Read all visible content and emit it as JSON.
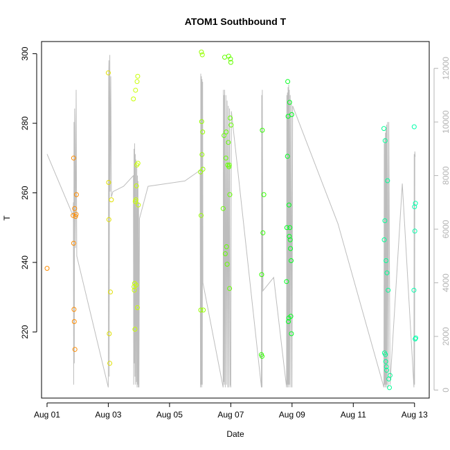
{
  "chart_data": {
    "type": "scatter",
    "title": "ATOM1 Southbound T",
    "xlabel": "Date",
    "ylabel": "T",
    "x_ticks": [
      "Aug 01",
      "Aug 03",
      "Aug 05",
      "Aug 07",
      "Aug 09",
      "Aug 11",
      "Aug 13"
    ],
    "x_tick_days": [
      1,
      3,
      5,
      7,
      9,
      11,
      13
    ],
    "xlim": [
      0.82,
      13.48
    ],
    "y_ticks": [
      220,
      240,
      260,
      280,
      300
    ],
    "ylim": [
      201,
      303.5
    ],
    "y2_ticks": [
      0,
      2000,
      4000,
      6000,
      8000,
      10000,
      12000
    ],
    "y2lim": [
      -300,
      13000
    ],
    "grid": false,
    "secondary_series": {
      "axis": "right",
      "color": "#bdbdbd",
      "points": [
        [
          1.0,
          8800
        ],
        [
          1.85,
          6500
        ],
        [
          1.86,
          7000
        ],
        [
          1.87,
          200
        ],
        [
          1.88,
          10000
        ],
        [
          1.89,
          1000
        ],
        [
          1.9,
          10500
        ],
        [
          1.91,
          9800
        ],
        [
          1.93,
          5300
        ],
        [
          1.95,
          11200
        ],
        [
          1.97,
          5000
        ],
        [
          3.0,
          100
        ],
        [
          3.01,
          11800
        ],
        [
          3.02,
          12300
        ],
        [
          3.03,
          500
        ],
        [
          3.04,
          9800
        ],
        [
          3.05,
          12500
        ],
        [
          3.06,
          7400
        ],
        [
          3.08,
          11700
        ],
        [
          3.1,
          7200
        ],
        [
          3.15,
          7400
        ],
        [
          3.5,
          7600
        ],
        [
          3.82,
          8000
        ],
        [
          3.83,
          200
        ],
        [
          3.84,
          9000
        ],
        [
          3.85,
          1000
        ],
        [
          3.86,
          9200
        ],
        [
          3.87,
          500
        ],
        [
          3.88,
          8800
        ],
        [
          3.89,
          200
        ],
        [
          3.9,
          8600
        ],
        [
          3.92,
          300
        ],
        [
          3.93,
          8400
        ],
        [
          3.94,
          100
        ],
        [
          3.95,
          8000
        ],
        [
          3.96,
          200
        ],
        [
          3.97,
          7800
        ],
        [
          3.98,
          100
        ],
        [
          3.99,
          7000
        ],
        [
          4.0,
          100
        ],
        [
          4.02,
          6400
        ],
        [
          4.3,
          7600
        ],
        [
          5.5,
          7800
        ],
        [
          6.0,
          8200
        ],
        [
          6.01,
          100
        ],
        [
          6.02,
          11800
        ],
        [
          6.03,
          200
        ],
        [
          6.04,
          11700
        ],
        [
          6.05,
          100
        ],
        [
          6.06,
          11600
        ],
        [
          6.07,
          200
        ],
        [
          6.08,
          11500
        ],
        [
          6.09,
          4000
        ],
        [
          6.75,
          100
        ],
        [
          6.76,
          11200
        ],
        [
          6.77,
          300
        ],
        [
          6.78,
          11000
        ],
        [
          6.79,
          200
        ],
        [
          6.8,
          11200
        ],
        [
          6.82,
          100
        ],
        [
          6.84,
          11000
        ],
        [
          6.86,
          200
        ],
        [
          6.88,
          10800
        ],
        [
          6.9,
          100
        ],
        [
          6.92,
          10600
        ],
        [
          6.94,
          100
        ],
        [
          6.96,
          10500
        ],
        [
          6.98,
          200
        ],
        [
          7.0,
          100
        ],
        [
          7.02,
          10400
        ],
        [
          8.0,
          100
        ],
        [
          8.01,
          11000
        ],
        [
          8.02,
          100
        ],
        [
          8.03,
          11200
        ],
        [
          8.05,
          3700
        ],
        [
          8.4,
          4200
        ],
        [
          8.82,
          100
        ],
        [
          8.83,
          11000
        ],
        [
          8.84,
          200
        ],
        [
          8.85,
          11100
        ],
        [
          8.86,
          100
        ],
        [
          8.87,
          11300
        ],
        [
          8.88,
          200
        ],
        [
          8.89,
          11400
        ],
        [
          8.9,
          100
        ],
        [
          8.91,
          11200
        ],
        [
          8.92,
          200
        ],
        [
          8.94,
          11000
        ],
        [
          8.96,
          100
        ],
        [
          8.98,
          10800
        ],
        [
          9.0,
          100
        ],
        [
          9.02,
          10600
        ],
        [
          10.5,
          6200
        ],
        [
          12.0,
          100
        ],
        [
          12.01,
          9200
        ],
        [
          12.02,
          200
        ],
        [
          12.03,
          9400
        ],
        [
          12.04,
          100
        ],
        [
          12.05,
          9600
        ],
        [
          12.06,
          200
        ],
        [
          12.07,
          9800
        ],
        [
          12.08,
          100
        ],
        [
          12.09,
          9900
        ],
        [
          12.1,
          200
        ],
        [
          12.12,
          10000
        ],
        [
          12.14,
          100
        ],
        [
          12.16,
          10000
        ],
        [
          12.2,
          200
        ],
        [
          12.6,
          7700
        ],
        [
          12.98,
          100
        ],
        [
          12.99,
          8800
        ],
        [
          13.0,
          200
        ],
        [
          13.01,
          8900
        ],
        [
          13.02,
          8700
        ]
      ]
    },
    "series": [
      {
        "color": "#ff8c00",
        "points": [
          [
            1.0,
            238.3
          ],
          [
            1.85,
            253.5
          ],
          [
            1.87,
            245.5
          ],
          [
            1.87,
            270.0
          ],
          [
            1.88,
            226.5
          ],
          [
            1.89,
            223.0
          ],
          [
            1.9,
            255.5
          ],
          [
            1.91,
            215.0
          ],
          [
            1.93,
            253.2
          ],
          [
            1.95,
            253.8
          ],
          [
            1.96,
            259.5
          ]
        ]
      },
      {
        "color": "#e0e000",
        "points": [
          [
            3.0,
            294.5
          ],
          [
            3.01,
            263.0
          ],
          [
            3.02,
            252.3
          ],
          [
            3.03,
            219.5
          ],
          [
            3.05,
            211.0
          ],
          [
            3.07,
            231.5
          ],
          [
            3.1,
            258.0
          ]
        ]
      },
      {
        "color": "#c8ff00",
        "points": [
          [
            3.82,
            287.0
          ],
          [
            3.84,
            233.0
          ],
          [
            3.85,
            232.0
          ],
          [
            3.86,
            234.0
          ],
          [
            3.87,
            220.8
          ],
          [
            3.88,
            257.5
          ],
          [
            3.89,
            289.5
          ],
          [
            3.9,
            258.0
          ],
          [
            3.91,
            233.5
          ],
          [
            3.92,
            262.0
          ],
          [
            3.93,
            268.0
          ],
          [
            3.94,
            292.0
          ],
          [
            3.95,
            227.0
          ],
          [
            3.96,
            293.5
          ],
          [
            3.97,
            268.5
          ],
          [
            3.98,
            256.5
          ]
        ]
      },
      {
        "color": "#96ff00",
        "points": [
          [
            6.01,
            266.0
          ],
          [
            6.02,
            226.3
          ],
          [
            6.03,
            253.5
          ],
          [
            6.04,
            300.5
          ],
          [
            6.05,
            280.5
          ],
          [
            6.06,
            271.0
          ],
          [
            6.07,
            299.7
          ],
          [
            6.08,
            277.5
          ],
          [
            6.09,
            266.8
          ],
          [
            6.1,
            226.3
          ]
        ]
      },
      {
        "color": "#64ff00",
        "points": [
          [
            6.75,
            255.5
          ],
          [
            6.78,
            276.5
          ],
          [
            6.8,
            299.0
          ],
          [
            6.82,
            242.5
          ],
          [
            6.84,
            270.0
          ],
          [
            6.85,
            277.5
          ],
          [
            6.86,
            244.5
          ],
          [
            6.88,
            239.5
          ],
          [
            6.9,
            268.0
          ],
          [
            6.92,
            274.5
          ],
          [
            6.93,
            299.3
          ],
          [
            6.94,
            267.5
          ],
          [
            6.95,
            268.0
          ],
          [
            6.96,
            232.5
          ],
          [
            6.97,
            259.5
          ],
          [
            6.98,
            281.5
          ],
          [
            7.0,
            297.5
          ],
          [
            7.01,
            279.5
          ],
          [
            6.99,
            298.5
          ]
        ]
      },
      {
        "color": "#32ff00",
        "points": [
          [
            8.0,
            213.5
          ],
          [
            8.01,
            236.5
          ],
          [
            8.02,
            213.0
          ],
          [
            8.03,
            278.0
          ],
          [
            8.05,
            248.5
          ],
          [
            8.08,
            259.5
          ]
        ]
      },
      {
        "color": "#00ff1e",
        "points": [
          [
            8.82,
            234.5
          ],
          [
            8.83,
            250.0
          ],
          [
            8.85,
            270.5
          ],
          [
            8.86,
            292.0
          ],
          [
            8.87,
            282.0
          ],
          [
            8.88,
            223.0
          ],
          [
            8.89,
            224.0
          ],
          [
            8.9,
            256.5
          ],
          [
            8.91,
            247.5
          ],
          [
            8.92,
            286.0
          ],
          [
            8.93,
            250.0
          ],
          [
            8.94,
            246.5
          ],
          [
            8.95,
            244.0
          ],
          [
            8.96,
            224.5
          ],
          [
            8.97,
            240.5
          ],
          [
            8.98,
            219.5
          ],
          [
            8.99,
            282.5
          ]
        ]
      },
      {
        "color": "#00ff96",
        "points": [
          [
            12.0,
            278.5
          ],
          [
            12.01,
            246.5
          ],
          [
            12.02,
            214.0
          ],
          [
            12.03,
            252.0
          ],
          [
            12.04,
            275.0
          ],
          [
            12.05,
            213.5
          ],
          [
            12.06,
            211.5
          ],
          [
            12.07,
            240.5
          ],
          [
            12.08,
            210.0
          ],
          [
            12.09,
            209.0
          ],
          [
            12.1,
            237.0
          ],
          [
            12.12,
            263.5
          ],
          [
            12.14,
            232.0
          ],
          [
            12.16,
            206.5
          ],
          [
            12.18,
            204.0
          ],
          [
            12.2,
            207.5
          ]
        ]
      },
      {
        "color": "#00ffaa",
        "points": [
          [
            12.98,
            232.0
          ],
          [
            12.99,
            279.0
          ],
          [
            13.0,
            256.0
          ],
          [
            13.01,
            249.0
          ],
          [
            13.02,
            218.0
          ],
          [
            13.03,
            257.0
          ],
          [
            13.04,
            218.3
          ]
        ]
      }
    ]
  }
}
